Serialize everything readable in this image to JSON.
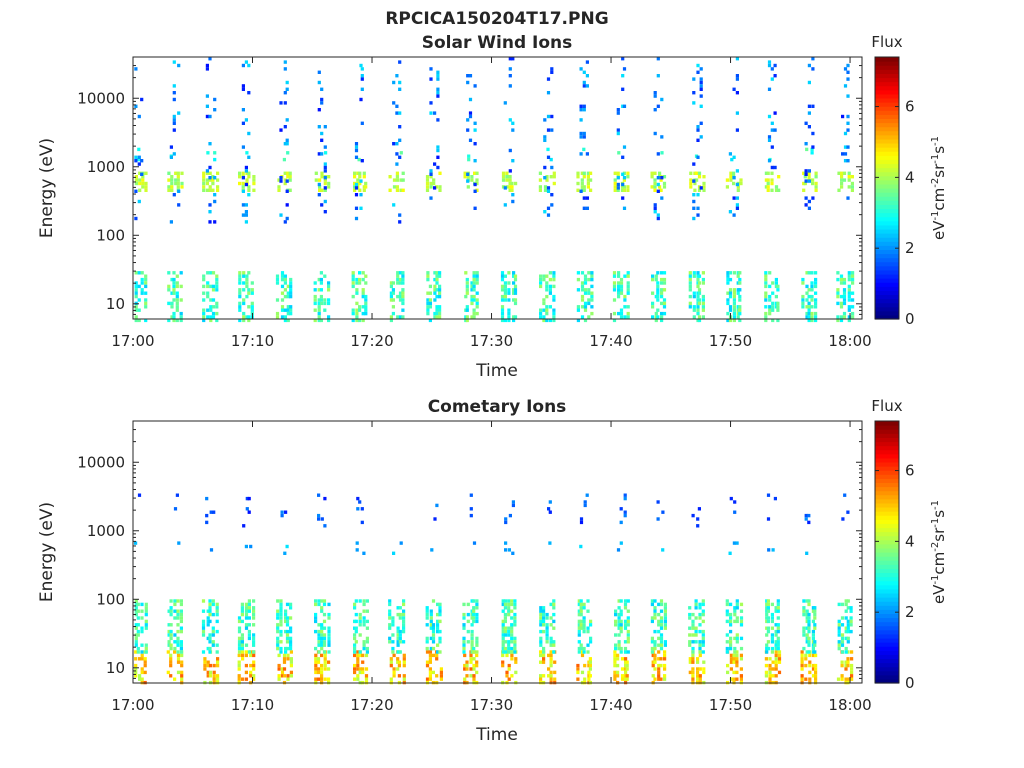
{
  "figure_title": "RPCICA150204T17.PNG",
  "chart_data": [
    {
      "type": "heatmap",
      "title": "Solar Wind Ions",
      "xlabel": "Time",
      "ylabel": "Energy (eV)",
      "x_range": [
        "17:00",
        "18:01"
      ],
      "x_ticks": [
        "17:00",
        "17:10",
        "17:20",
        "17:30",
        "17:40",
        "17:50",
        "18:00"
      ],
      "y_scale": "log",
      "y_range": [
        6,
        40000
      ],
      "y_ticks": [
        10,
        100,
        1000,
        10000
      ],
      "y_tick_labels": [
        "10",
        "100",
        "1000",
        "10000"
      ],
      "colorbar": {
        "title": "Flux",
        "label": "eV⁻¹cm⁻²sr⁻¹s⁻¹",
        "range": [
          0,
          7.4
        ],
        "ticks": [
          "0",
          "2",
          "4",
          "6"
        ],
        "colormap": "jet"
      },
      "sweep_times_min": [
        0.5,
        3.5,
        6.5,
        9.5,
        12.7,
        15.8,
        19.0,
        22.1,
        25.2,
        28.3,
        31.5,
        34.7,
        37.8,
        40.9,
        44.0,
        47.2,
        50.3,
        53.5,
        56.6,
        59.6
      ],
      "bands": [
        {
          "name": "core",
          "energy_range": [
            450,
            850
          ],
          "flux_range": [
            3.6,
            4.6
          ]
        },
        {
          "name": "alpha",
          "energy_range": [
            1300,
            1900
          ],
          "flux_range": [
            2.6,
            3.6
          ]
        },
        {
          "name": "scatter",
          "energy_range": [
            150,
            40000
          ],
          "flux_range": [
            1.0,
            2.6
          ]
        },
        {
          "name": "low",
          "energy_range": [
            6,
            30
          ],
          "flux_range": [
            2.4,
            4.0
          ]
        }
      ]
    },
    {
      "type": "heatmap",
      "title": "Cometary Ions",
      "xlabel": "Time",
      "ylabel": "Energy (eV)",
      "x_range": [
        "17:00",
        "18:01"
      ],
      "x_ticks": [
        "17:00",
        "17:10",
        "17:20",
        "17:30",
        "17:40",
        "17:50",
        "18:00"
      ],
      "y_scale": "log",
      "y_range": [
        6,
        40000
      ],
      "y_ticks": [
        10,
        100,
        1000,
        10000
      ],
      "y_tick_labels": [
        "10",
        "100",
        "1000",
        "10000"
      ],
      "colorbar": {
        "title": "Flux",
        "label": "eV⁻¹cm⁻²sr⁻¹s⁻¹",
        "range": [
          0,
          7.4
        ],
        "ticks": [
          "0",
          "2",
          "4",
          "6"
        ],
        "colormap": "jet"
      },
      "sweep_times_min": [
        0.5,
        3.5,
        6.5,
        9.5,
        12.7,
        15.8,
        19.0,
        22.1,
        25.2,
        28.3,
        31.5,
        34.7,
        37.8,
        40.9,
        44.0,
        47.2,
        50.3,
        53.5,
        56.6,
        59.6
      ],
      "bands": [
        {
          "name": "heavy",
          "energy_range": [
            6,
            18
          ],
          "flux_range": [
            4.0,
            5.8
          ]
        },
        {
          "name": "mid",
          "energy_range": [
            18,
            100
          ],
          "flux_range": [
            2.4,
            4.0
          ]
        },
        {
          "name": "sw_trace",
          "energy_range": [
            450,
            700
          ],
          "flux_range": [
            1.8,
            2.6
          ]
        },
        {
          "name": "sparse",
          "energy_range": [
            1200,
            3500
          ],
          "flux_range": [
            1.0,
            2.0
          ]
        }
      ]
    }
  ]
}
